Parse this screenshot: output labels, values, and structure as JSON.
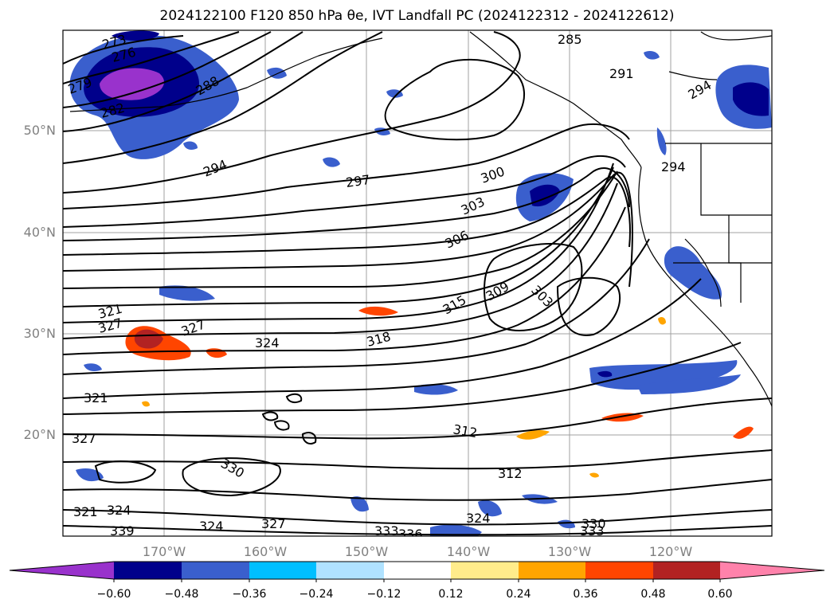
{
  "title": "2024122100 F120 850 hPa θe, IVT Landfall PC (2024122312 - 2024122612)",
  "latitude_labels": [
    "50°N",
    "40°N",
    "30°N",
    "20°N"
  ],
  "longitude_labels": [
    "170°W",
    "160°W",
    "150°W",
    "140°W",
    "130°W",
    "120°W"
  ],
  "colorbar": {
    "tick_labels": [
      "−0.60",
      "−0.48",
      "−0.36",
      "−0.24",
      "−0.12",
      "0.12",
      "0.24",
      "0.36",
      "0.48",
      "0.60"
    ],
    "colors": [
      "#9932CC",
      "#00008B",
      "#3A5FCD",
      "#00BFFF",
      "#B0E2FF",
      "#FFFFFF",
      "#FFEC8B",
      "#FFA500",
      "#FF4500",
      "#B22222",
      "#FF82AB"
    ]
  },
  "contour_labels": [
    "273",
    "276",
    "279",
    "282",
    "285",
    "288",
    "291",
    "294",
    "297",
    "300",
    "303",
    "306",
    "309",
    "312",
    "315",
    "318",
    "321",
    "324",
    "327",
    "330",
    "333",
    "336",
    "339"
  ],
  "colors": {
    "contour": "#000000",
    "gridline": "#a0a0a0",
    "axis_label": "#808080"
  }
}
